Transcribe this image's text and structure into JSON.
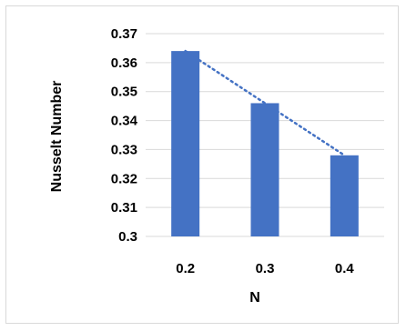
{
  "chart_data": {
    "type": "bar",
    "title": "",
    "xlabel": "N",
    "ylabel": "Nusselt Number",
    "categories": [
      "0.2",
      "0.3",
      "0.4"
    ],
    "values": [
      0.364,
      0.346,
      0.328
    ],
    "ylim": [
      0.3,
      0.37
    ],
    "yticks": [
      "0.3",
      "0.31",
      "0.32",
      "0.33",
      "0.34",
      "0.35",
      "0.36",
      "0.37"
    ],
    "grid": true,
    "legend": "none",
    "trendline": {
      "type": "linear",
      "style": "dotted",
      "from": 0.364,
      "to": 0.328
    },
    "colors": {
      "bar": "#4472c4",
      "trendline": "#4472c4",
      "grid": "#d9d9d9"
    }
  }
}
